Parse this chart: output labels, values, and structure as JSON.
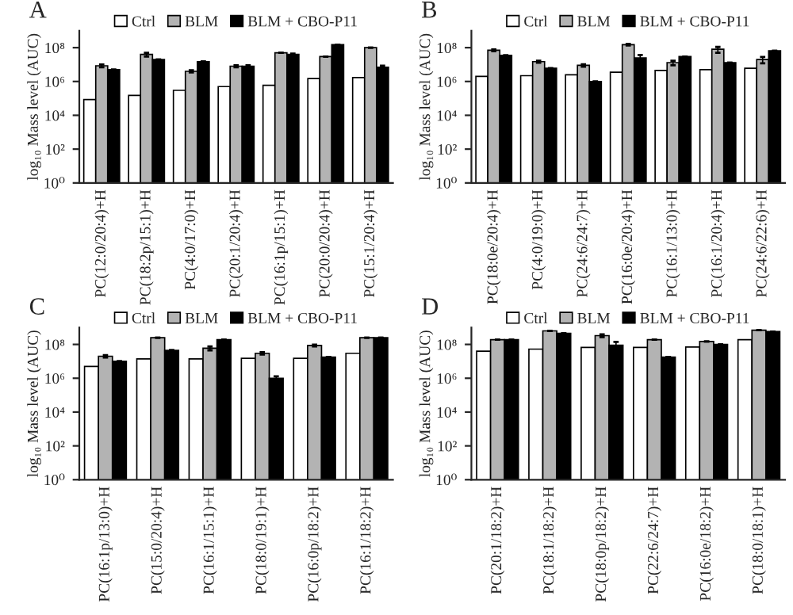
{
  "chart_data": [
    {
      "type": "bar",
      "title": "A",
      "ylabel": "log₁₀ Mass level (AUC)",
      "log": "y",
      "legend": "top",
      "ylim": [
        1,
        1000000000
      ],
      "yticks": [
        {
          "value": 1,
          "label": "10⁰"
        },
        {
          "value": 100,
          "label": "10²"
        },
        {
          "value": 10000,
          "label": "10⁴"
        },
        {
          "value": 1000000,
          "label": "10⁶"
        },
        {
          "value": 100000000,
          "label": "10⁸"
        }
      ],
      "categories": [
        "PC(12:0/20:4)+H",
        "PC(18:2p/15:1)+H",
        "PC(4:0/17:0)+H",
        "PC(20:1/20:4)+H",
        "PC(16:1p/15:1)+H",
        "PC(20:0/20:4)+H",
        "PC(15:1/20:4)+H"
      ],
      "series": [
        {
          "name": "Ctrl",
          "color": "#ffffff",
          "values": [
            85000,
            150000,
            300000,
            500000,
            600000,
            1500000,
            1700000
          ]
        },
        {
          "name": "BLM",
          "color": "#b3b3b3",
          "values": [
            8500000,
            40000000,
            4000000,
            8000000,
            50000000,
            30000000,
            100000000
          ],
          "errors": [
            1500000,
            10000000,
            600000,
            1000000,
            null,
            null,
            null
          ]
        },
        {
          "name": "BLM + CBO-P11",
          "color": "#000000",
          "values": [
            5000000,
            20000000,
            15000000,
            8000000,
            40000000,
            150000000,
            7000000
          ],
          "errors": [
            null,
            null,
            null,
            1000000,
            5000000,
            null,
            1500000
          ]
        }
      ]
    },
    {
      "type": "bar",
      "title": "B",
      "ylabel": "log₁₀ Mass level (AUC)",
      "log": "y",
      "legend": "top",
      "ylim": [
        1,
        1000000000
      ],
      "yticks": [
        {
          "value": 1,
          "label": "10⁰"
        },
        {
          "value": 100,
          "label": "10²"
        },
        {
          "value": 10000,
          "label": "10⁴"
        },
        {
          "value": 1000000,
          "label": "10⁶"
        },
        {
          "value": 100000000,
          "label": "10⁸"
        }
      ],
      "categories": [
        "PC(18:0e/20:4)+H",
        "PC(4:0/19:0)+H",
        "PC(24:6/24:7)+H",
        "PC(16:0e/20:4)+H",
        "PC(16:1/13:0)+H",
        "PC(16:1/20:4)+H",
        "PC(24:6/22:6)+H"
      ],
      "series": [
        {
          "name": "Ctrl",
          "color": "#ffffff",
          "values": [
            2000000,
            2200000,
            2500000,
            3500000,
            4500000,
            5000000,
            6000000
          ]
        },
        {
          "name": "BLM",
          "color": "#b3b3b3",
          "values": [
            70000000,
            15000000,
            9000000,
            150000000,
            13000000,
            80000000,
            20000000
          ],
          "errors": [
            8000000,
            2000000,
            1500000,
            15000000,
            4000000,
            30000000,
            8000000
          ]
        },
        {
          "name": "BLM + CBO-P11",
          "color": "#000000",
          "values": [
            35000000,
            6000000,
            1000000,
            25000000,
            30000000,
            13000000,
            65000000
          ],
          "errors": [
            null,
            null,
            null,
            12000000,
            null,
            null,
            null
          ]
        }
      ]
    },
    {
      "type": "bar",
      "title": "C",
      "ylabel": "log₁₀ Mass level (AUC)",
      "log": "y",
      "legend": "top",
      "ylim": [
        1,
        1000000000
      ],
      "yticks": [
        {
          "value": 1,
          "label": "10⁰"
        },
        {
          "value": 100,
          "label": "10²"
        },
        {
          "value": 10000,
          "label": "10⁴"
        },
        {
          "value": 1000000,
          "label": "10⁶"
        },
        {
          "value": 100000000,
          "label": "10⁸"
        }
      ],
      "categories": [
        "PC(16:1p/13:0)+H",
        "PC(15:0/20:4)+H",
        "PC(16:1/15:1)+H",
        "PC(18:0/19:1)+H",
        "PC(16:0p/18:2)+H",
        "PC(16:1/18:2)+H"
      ],
      "series": [
        {
          "name": "Ctrl",
          "color": "#ffffff",
          "values": [
            5000000,
            14000000,
            14000000,
            15000000,
            15000000,
            30000000
          ]
        },
        {
          "name": "BLM",
          "color": "#b3b3b3",
          "values": [
            20000000,
            250000000,
            60000000,
            30000000,
            87000000,
            250000000
          ],
          "errors": [
            3000000,
            null,
            15000000,
            5000000,
            10000000,
            null
          ]
        },
        {
          "name": "BLM + CBO-P11",
          "color": "#000000",
          "values": [
            10000000,
            45000000,
            190000000,
            1000000,
            18000000,
            250000000
          ],
          "errors": [
            null,
            null,
            null,
            300000,
            null,
            null
          ]
        }
      ]
    },
    {
      "type": "bar",
      "title": "D",
      "ylabel": "log₁₀ Mass level (AUC)",
      "log": "y",
      "legend": "top",
      "ylim": [
        1,
        1000000000
      ],
      "yticks": [
        {
          "value": 1,
          "label": "10⁰"
        },
        {
          "value": 100,
          "label": "10²"
        },
        {
          "value": 10000,
          "label": "10⁴"
        },
        {
          "value": 1000000,
          "label": "10⁶"
        },
        {
          "value": 100000000,
          "label": "10⁸"
        }
      ],
      "categories": [
        "PC(20:1/18:2)+H",
        "PC(18:1/18:2)+H",
        "PC(18:0p/18:2)+H",
        "PC(22:6/24:7)+H",
        "PC(16:0e/18:2)+H",
        "PC(18:0/18:1)+H"
      ],
      "series": [
        {
          "name": "Ctrl",
          "color": "#ffffff",
          "values": [
            40000000,
            53000000,
            66000000,
            66000000,
            70000000,
            190000000
          ]
        },
        {
          "name": "BLM",
          "color": "#b3b3b3",
          "values": [
            190000000,
            630000000,
            330000000,
            190000000,
            150000000,
            700000000
          ],
          "errors": [
            null,
            null,
            60000000,
            null,
            null,
            null
          ]
        },
        {
          "name": "BLM + CBO-P11",
          "color": "#000000",
          "values": [
            190000000,
            450000000,
            90000000,
            18000000,
            100000000,
            580000000
          ],
          "errors": [
            null,
            null,
            50000000,
            null,
            null,
            null
          ]
        }
      ]
    }
  ]
}
